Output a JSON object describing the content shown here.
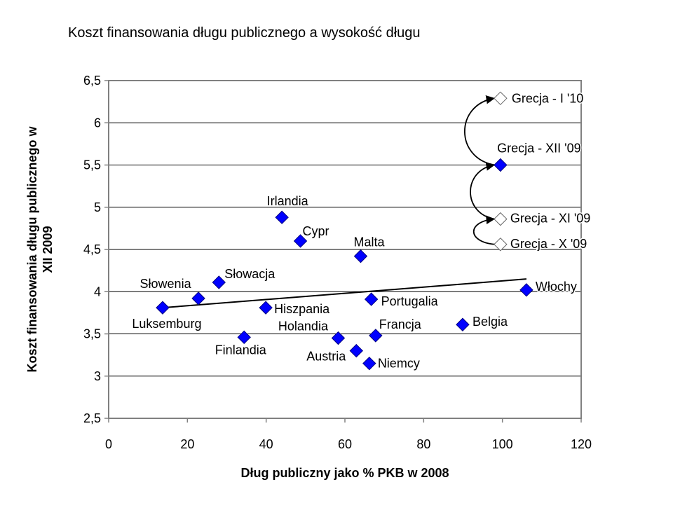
{
  "chart_data": {
    "type": "scatter",
    "title": "Koszt finansowania długu publicznego a wysokość długu",
    "xlabel": "Dług publiczny jako %  PKB w 2008",
    "ylabel_lines": [
      "Koszt finansowania długu publicznego w",
      "XII 2009"
    ],
    "xlim": [
      0,
      120
    ],
    "ylim": [
      2.5,
      6.5
    ],
    "xticks": [
      "0",
      "20",
      "40",
      "60",
      "80",
      "100",
      "120"
    ],
    "yticks": [
      "2,5",
      "3",
      "3,5",
      "4",
      "4,5",
      "5",
      "5,5",
      "6",
      "6,5"
    ],
    "grid": "horizontal",
    "marker_color": "#0000FF",
    "hollow_marker_color": "#FFFFFF",
    "points": [
      {
        "label": "Luksemburg",
        "x": 13.7,
        "y": 3.81,
        "filled": true
      },
      {
        "label": "Słowenia",
        "x": 22.8,
        "y": 3.92,
        "filled": true
      },
      {
        "label": "Słowacja",
        "x": 28.0,
        "y": 4.11,
        "filled": true
      },
      {
        "label": "Irlandia",
        "x": 44.0,
        "y": 4.88,
        "filled": true
      },
      {
        "label": "Cypr",
        "x": 48.7,
        "y": 4.6,
        "filled": true
      },
      {
        "label": "Malta",
        "x": 64.0,
        "y": 4.42,
        "filled": true
      },
      {
        "label": "Hiszpania",
        "x": 39.9,
        "y": 3.81,
        "filled": true
      },
      {
        "label": "Finlandia",
        "x": 34.4,
        "y": 3.46,
        "filled": true
      },
      {
        "label": "Holandia",
        "x": 58.3,
        "y": 3.45,
        "filled": true
      },
      {
        "label": "Austria",
        "x": 62.9,
        "y": 3.3,
        "filled": true
      },
      {
        "label": "Niemcy",
        "x": 66.2,
        "y": 3.15,
        "filled": true
      },
      {
        "label": "Francja",
        "x": 67.8,
        "y": 3.48,
        "filled": true
      },
      {
        "label": "Portugalia",
        "x": 66.7,
        "y": 3.91,
        "filled": true
      },
      {
        "label": "Belgia",
        "x": 89.9,
        "y": 3.61,
        "filled": true
      },
      {
        "label": "Włochy",
        "x": 106.1,
        "y": 4.02,
        "filled": true
      },
      {
        "label": "Grecja - XII '09",
        "x": 99.5,
        "y": 5.5,
        "filled": true
      },
      {
        "label": "Grecja - I '10",
        "x": 99.5,
        "y": 6.29,
        "filled": false
      },
      {
        "label": "Grecja - XI '09",
        "x": 99.5,
        "y": 4.86,
        "filled": false
      },
      {
        "label": "Grecja - X '09",
        "x": 99.5,
        "y": 4.56,
        "filled": false
      }
    ],
    "trendline": {
      "x": [
        13.7,
        106.1
      ],
      "y": [
        3.81,
        4.15
      ]
    },
    "arrows": [
      {
        "from": "Grecja - X '09",
        "to": "Grecja - XI '09"
      },
      {
        "from": "Grecja - XI '09",
        "to": "Grecja - XII '09"
      },
      {
        "from": "Grecja - XII '09",
        "to": "Grecja - I '10"
      }
    ]
  }
}
